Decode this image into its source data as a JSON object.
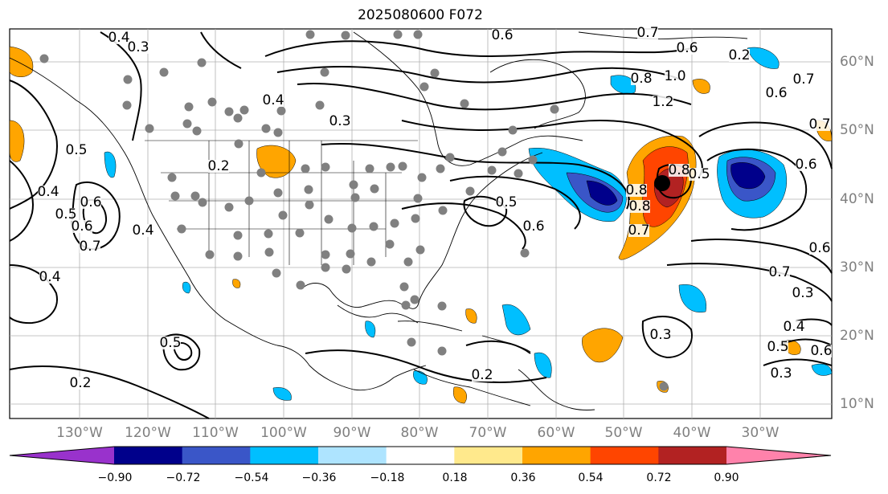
{
  "title": "2025080600 F072",
  "lat_labels": [
    "60°N",
    "50°N",
    "40°N",
    "30°N",
    "20°N",
    "10°N"
  ],
  "lon_labels": [
    "130°W",
    "120°W",
    "110°W",
    "100°W",
    "90°W",
    "80°W",
    "70°W",
    "60°W",
    "50°W",
    "40°W",
    "30°W"
  ],
  "colorbar": {
    "ticks": [
      "−0.90",
      "−0.72",
      "−0.54",
      "−0.36",
      "−0.18",
      "0.18",
      "0.36",
      "0.54",
      "0.72",
      "0.90"
    ],
    "colors": [
      "#9932cc",
      "#00008b",
      "#3a56c8",
      "#00bfff",
      "#aee4ff",
      "#ffffff",
      "#ffe98c",
      "#ffa500",
      "#ff4500",
      "#b22222",
      "#ff82ab"
    ]
  },
  "contour_labels": [
    "0.4",
    "0.3",
    "0.6",
    "0.7",
    "0.6",
    "0.3",
    "1.0",
    "0.7",
    "1.2",
    "0.8",
    "0.6",
    "0.7",
    "0.6",
    "0.3",
    "0.2",
    "0.4",
    "0.5",
    "0.4",
    "0.5",
    "0.6",
    "0.7",
    "0.8",
    "0.5",
    "0.8",
    "0.7",
    "0.5",
    "0.6",
    "0.8",
    "0.6",
    "0.7",
    "0.3",
    "0.2",
    "0.3",
    "0.4",
    "0.5",
    "0.6",
    "0.2",
    "0.4",
    "0.3",
    "0.5",
    "0.4",
    "0.2",
    "0.6"
  ]
}
